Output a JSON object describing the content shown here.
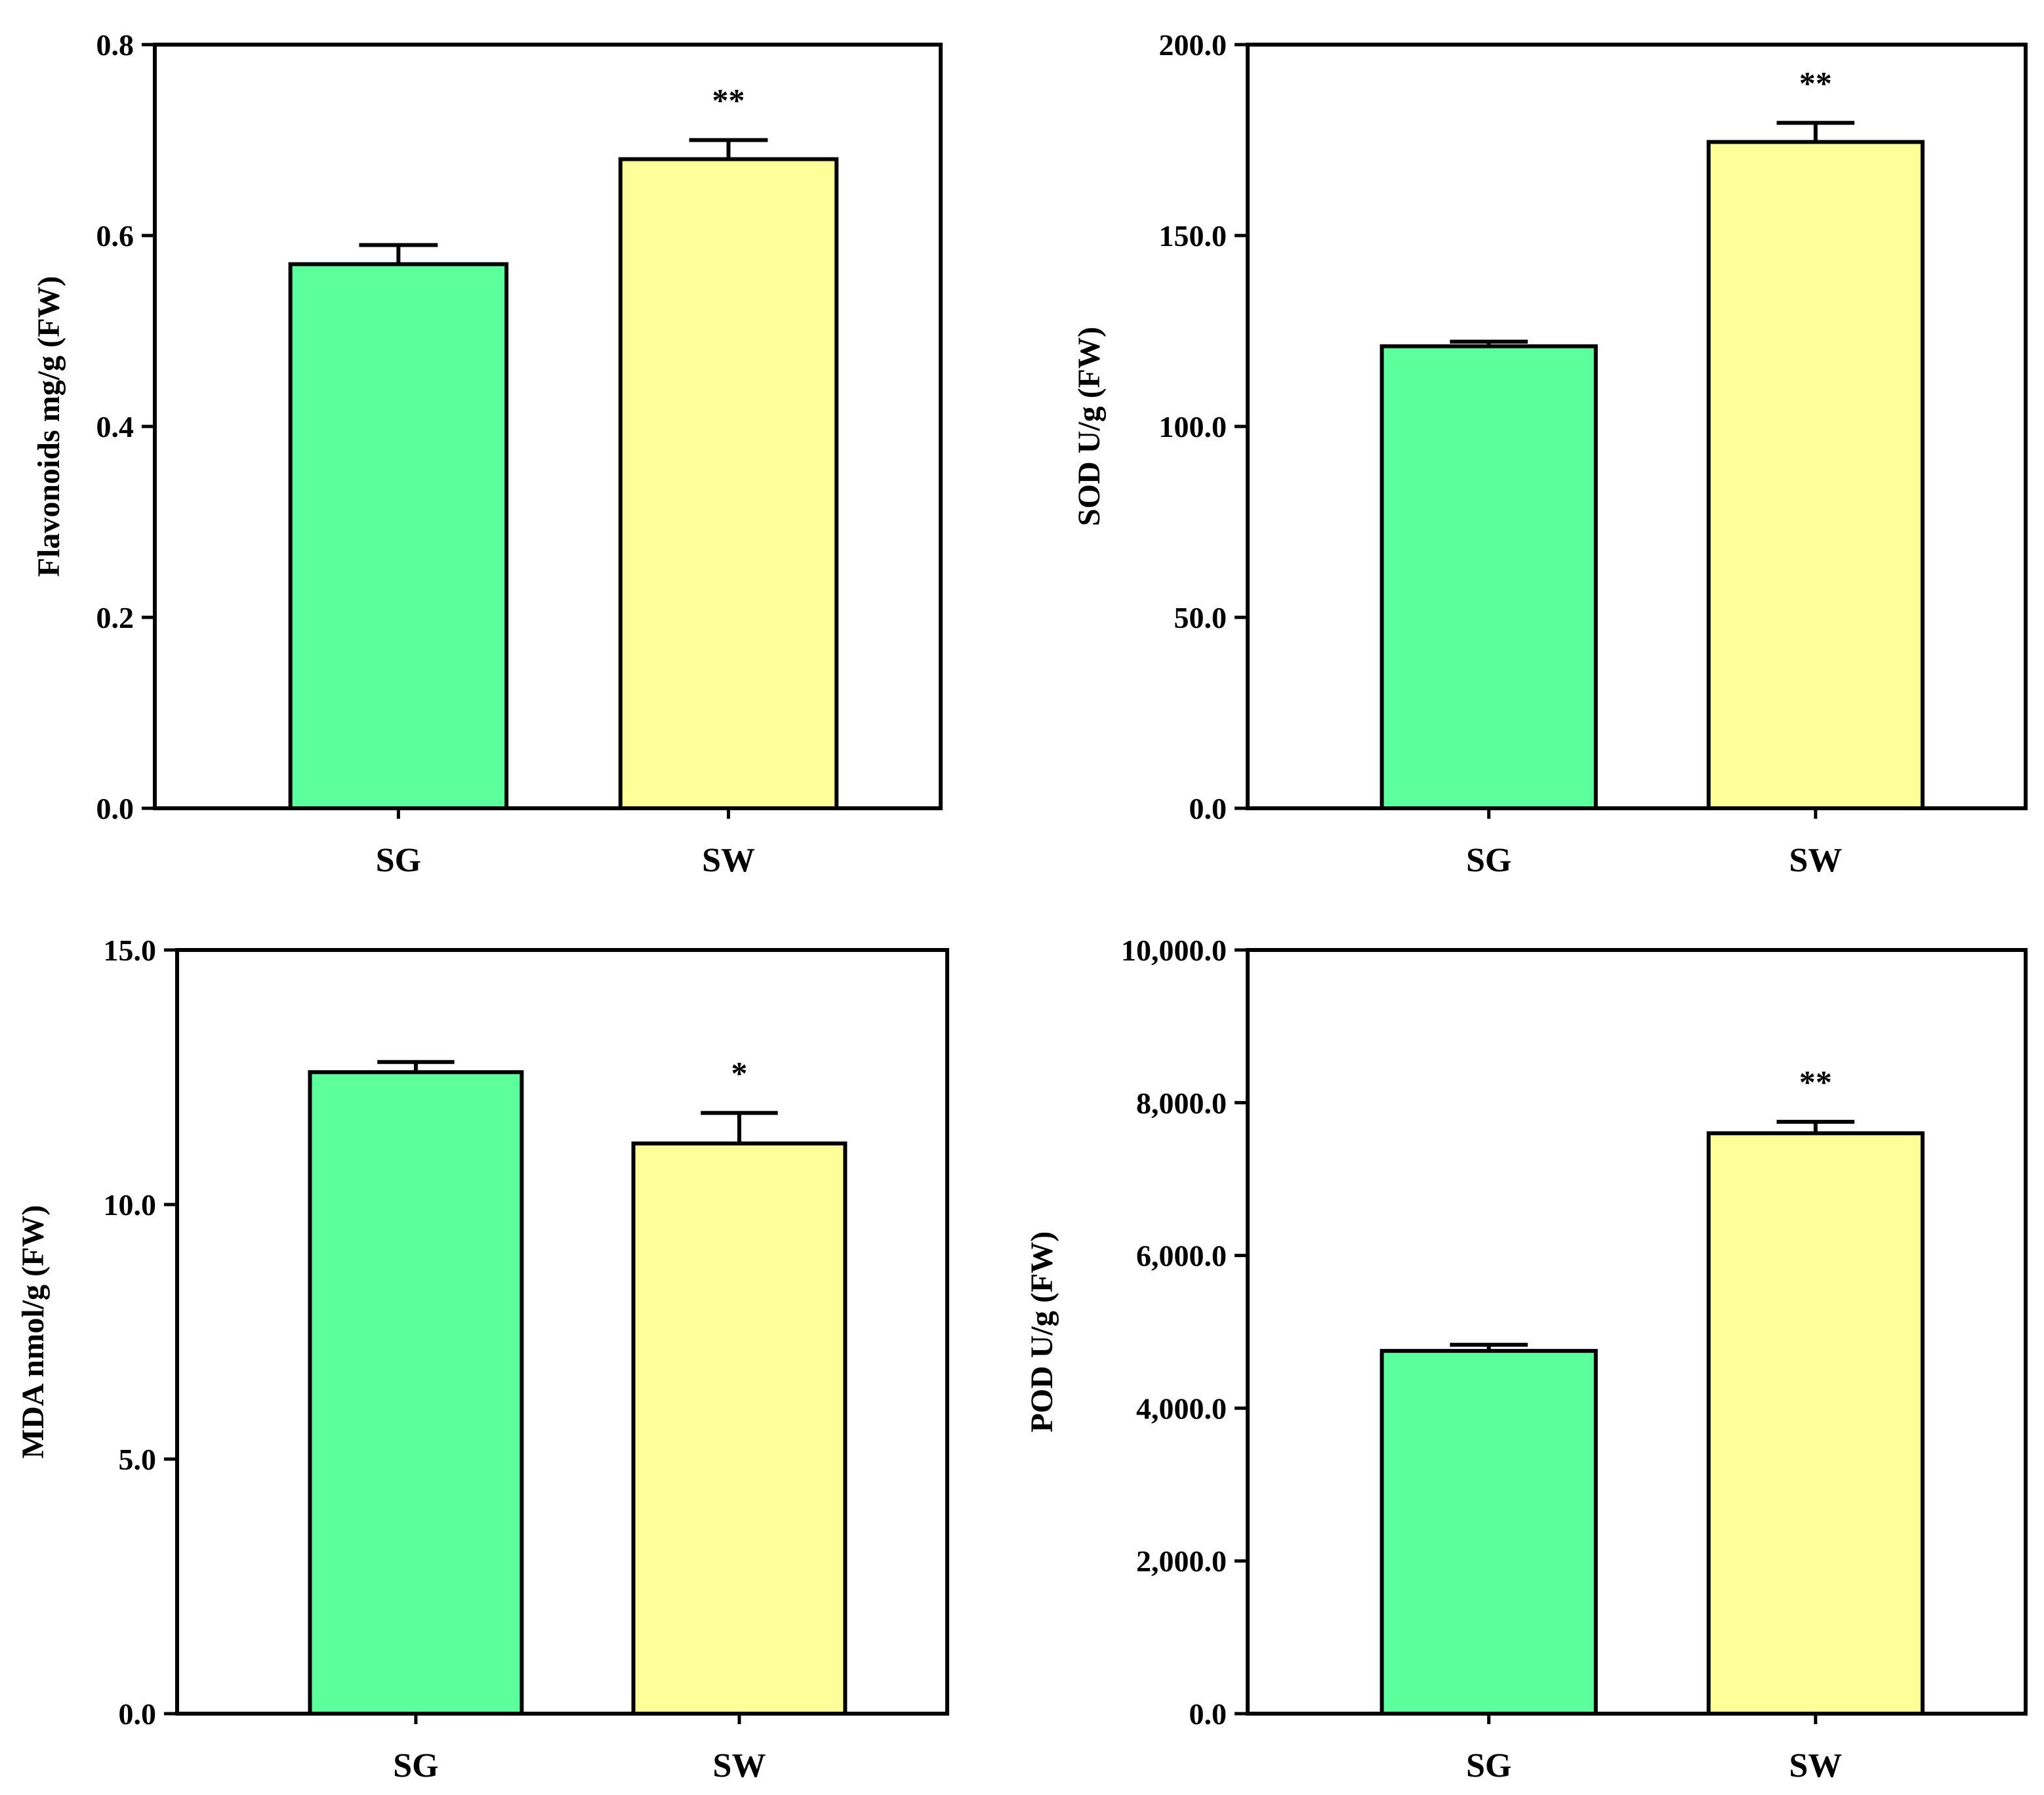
{
  "colors": {
    "sg_fill": "#5bff9c",
    "sw_fill": "#ffff99",
    "stroke": "#000000"
  },
  "chart_data": [
    {
      "type": "bar",
      "title": "",
      "xlabel": "",
      "ylabel": "Flavonoids mg/g (FW)",
      "categories": [
        "SG",
        "SW"
      ],
      "values": [
        0.57,
        0.68
      ],
      "errors": [
        0.02,
        0.02
      ],
      "significance": [
        "",
        "**"
      ],
      "ylim": [
        0,
        0.8
      ],
      "yticks": [
        0,
        0.2,
        0.4,
        0.6,
        0.8
      ],
      "ytick_labels": [
        "0.0",
        "0.2",
        "0.4",
        "0.6",
        "0.8"
      ],
      "grid": false
    },
    {
      "type": "bar",
      "title": "",
      "xlabel": "",
      "ylabel": "SOD U/g (FW)",
      "categories": [
        "SG",
        "SW"
      ],
      "values": [
        121.0,
        174.5
      ],
      "errors": [
        1.2,
        5.0
      ],
      "significance": [
        "",
        "**"
      ],
      "ylim": [
        0,
        200
      ],
      "yticks": [
        0,
        50,
        100,
        150,
        200
      ],
      "ytick_labels": [
        "0.0",
        "50.0",
        "100.0",
        "150.0",
        "200.0"
      ],
      "grid": false
    },
    {
      "type": "bar",
      "title": "",
      "xlabel": "",
      "ylabel": "MDA nmol/g (FW)",
      "categories": [
        "SG",
        "SW"
      ],
      "values": [
        12.6,
        11.2
      ],
      "errors": [
        0.2,
        0.6
      ],
      "significance": [
        "",
        "*"
      ],
      "ylim": [
        0,
        15
      ],
      "yticks": [
        0,
        5,
        10,
        15
      ],
      "ytick_labels": [
        "0.0",
        "5.0",
        "10.0",
        "15.0"
      ],
      "grid": false
    },
    {
      "type": "bar",
      "title": "",
      "xlabel": "",
      "ylabel": "POD U/g (FW)",
      "categories": [
        "SG",
        "SW"
      ],
      "values": [
        4750,
        7600
      ],
      "errors": [
        80,
        150
      ],
      "significance": [
        "",
        "**"
      ],
      "ylim": [
        0,
        10000
      ],
      "yticks": [
        0,
        2000,
        4000,
        6000,
        8000,
        10000
      ],
      "ytick_labels": [
        "0.0",
        "2,000.0",
        "4,000.0",
        "6,000.0",
        "8,000.0",
        "10,000.0"
      ],
      "grid": false
    }
  ]
}
